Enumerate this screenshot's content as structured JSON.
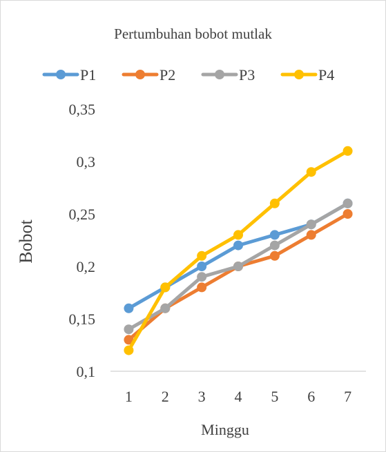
{
  "chart_data": {
    "type": "line",
    "title": "Pertumbuhan bobot mutlak",
    "xlabel": "Minggu",
    "ylabel": "Bobot",
    "x": [
      1,
      2,
      3,
      4,
      5,
      6,
      7
    ],
    "ylim": [
      0.1,
      0.35
    ],
    "yticks": [
      "0,1",
      "0,15",
      "0,2",
      "0,25",
      "0,3",
      "0,35"
    ],
    "ytick_values": [
      0.1,
      0.15,
      0.2,
      0.25,
      0.3,
      0.35
    ],
    "grid": false,
    "legend": "top",
    "series": [
      {
        "name": "P1",
        "color": "#5B9BD5",
        "values": [
          0.16,
          0.18,
          0.2,
          0.22,
          0.23,
          0.24,
          0.26
        ]
      },
      {
        "name": "P2",
        "color": "#ED7D31",
        "values": [
          0.13,
          0.16,
          0.18,
          0.2,
          0.21,
          0.23,
          0.25
        ]
      },
      {
        "name": "P3",
        "color": "#A5A5A5",
        "values": [
          0.14,
          0.16,
          0.19,
          0.2,
          0.22,
          0.24,
          0.26
        ]
      },
      {
        "name": "P4",
        "color": "#FFC000",
        "values": [
          0.12,
          0.18,
          0.21,
          0.23,
          0.26,
          0.29,
          0.31
        ]
      }
    ]
  }
}
